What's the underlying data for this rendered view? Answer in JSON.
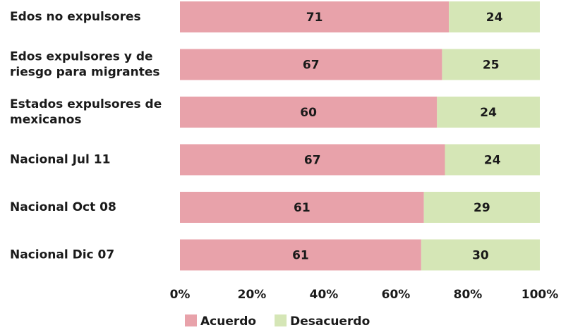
{
  "chart_data": {
    "type": "stacked-bar-horizontal",
    "stacked": "percent",
    "categories": [
      "Edos no expulsores",
      "Edos expulsores y de riesgo para migrantes",
      "Estados expulsores de mexicanos",
      "Nacional Jul 11",
      "Nacional Oct 08",
      "Nacional Dic 07"
    ],
    "series": [
      {
        "name": "Acuerdo",
        "color": "#e8a2aa",
        "values": [
          71,
          67,
          60,
          67,
          61,
          61
        ]
      },
      {
        "name": "Desacuerdo",
        "color": "#d5e6b6",
        "values": [
          24,
          25,
          24,
          24,
          29,
          30
        ]
      }
    ],
    "xlim": [
      0,
      100
    ],
    "xticks": [
      {
        "value": 0,
        "label": "0%"
      },
      {
        "value": 20,
        "label": "20%"
      },
      {
        "value": 40,
        "label": "40%"
      },
      {
        "value": 60,
        "label": "60%"
      },
      {
        "value": 80,
        "label": "80%"
      },
      {
        "value": 100,
        "label": "100%"
      }
    ],
    "legend": "bottom"
  }
}
